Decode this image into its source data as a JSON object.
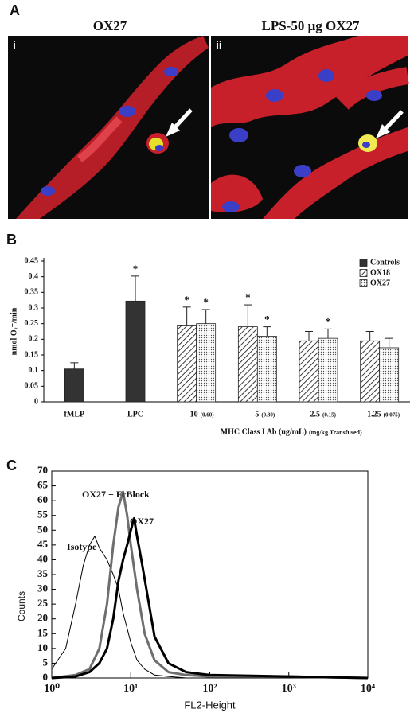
{
  "panel_labels": [
    "A",
    "B",
    "C"
  ],
  "images": [
    {
      "label": "i",
      "title": "OX27"
    },
    {
      "label": "ii",
      "title": "LPS-50 μg OX27"
    }
  ],
  "chart_data": [
    {
      "type": "bar",
      "ylabel": "nmol O₂⁻/min",
      "xlabel": "MHC Class I Ab (ug/mL)",
      "xlabel_sub": "(mg/kg Transfused)",
      "categories": [
        "fMLP",
        "LPC",
        "10",
        "5",
        "2.5",
        "1.25"
      ],
      "category_sublabels": [
        null,
        null,
        "(0.60)",
        "(0.30)",
        "(0.15)",
        "(0.075)"
      ],
      "series": [
        {
          "name": "Controls",
          "color": "#333333",
          "pattern": "solid",
          "values": [
            0.105,
            0.322,
            null,
            null,
            null,
            null
          ],
          "errors": [
            0.02,
            0.08,
            null,
            null,
            null,
            null
          ],
          "significance": [
            null,
            "*",
            null,
            null,
            null,
            null
          ]
        },
        {
          "name": "OX18",
          "color": "#222222",
          "pattern": "hatch",
          "values": [
            null,
            null,
            0.243,
            0.24,
            0.195,
            0.195
          ],
          "errors": [
            null,
            null,
            0.06,
            0.07,
            0.03,
            0.03
          ],
          "significance": [
            null,
            null,
            "*",
            "*",
            null,
            null
          ]
        },
        {
          "name": "OX27",
          "color": "#555555",
          "pattern": "dots",
          "values": [
            null,
            null,
            0.25,
            0.21,
            0.203,
            0.173
          ],
          "errors": [
            null,
            null,
            0.045,
            0.03,
            0.03,
            0.03
          ],
          "significance": [
            null,
            null,
            "*",
            "*",
            "*",
            null
          ]
        }
      ],
      "ylim": [
        0,
        0.45
      ],
      "yticks": [
        0,
        0.05,
        0.1,
        0.15,
        0.2,
        0.25,
        0.3,
        0.35,
        0.4,
        0.45
      ],
      "legend": "top-right"
    },
    {
      "type": "line",
      "xlabel": "FL2-Height",
      "ylabel": "Counts",
      "xscale": "log",
      "xlim": [
        1,
        10000
      ],
      "xticks": [
        {
          "value": 1,
          "label": "10⁰"
        },
        {
          "value": 10,
          "label": "10¹"
        },
        {
          "value": 100,
          "label": "10²"
        },
        {
          "value": 1000,
          "label": "10³"
        },
        {
          "value": 10000,
          "label": "10⁴"
        }
      ],
      "ylim": [
        0,
        70
      ],
      "yticks": [
        0,
        5,
        10,
        15,
        20,
        25,
        30,
        35,
        40,
        45,
        50,
        55,
        60,
        65,
        70
      ],
      "series": [
        {
          "name": "Isotype",
          "color": "#000000",
          "line_width": 1,
          "x": [
            1,
            1.5,
            2,
            2.5,
            3,
            3.5,
            4,
            5,
            6,
            7,
            8,
            10,
            12,
            15,
            20,
            30,
            50,
            100,
            1000,
            10000
          ],
          "values": [
            3,
            10,
            25,
            38,
            45,
            48,
            44,
            40,
            35,
            30,
            22,
            12,
            6,
            3,
            1,
            0.5,
            0,
            0,
            0,
            0
          ]
        },
        {
          "name": "OX27 + FcBlock",
          "color": "#6e6e6e",
          "line_width": 3,
          "x": [
            1,
            2,
            3,
            4,
            5,
            6,
            7,
            8,
            9,
            10,
            12,
            15,
            20,
            30,
            50,
            100,
            1000,
            10000
          ],
          "values": [
            0,
            1,
            3,
            10,
            25,
            45,
            58,
            63,
            55,
            45,
            30,
            15,
            6,
            2,
            1,
            0.5,
            0.5,
            0
          ]
        },
        {
          "name": "OX27",
          "color": "#000000",
          "line_width": 3,
          "x": [
            1,
            2,
            3,
            4,
            5,
            6,
            7,
            8,
            9,
            10,
            11,
            12,
            14,
            17,
            20,
            30,
            50,
            100,
            1000,
            10000
          ],
          "values": [
            0,
            0.5,
            2,
            5,
            10,
            20,
            33,
            40,
            45,
            50,
            54,
            48,
            38,
            25,
            14,
            5,
            2,
            1,
            0.5,
            0
          ]
        }
      ]
    }
  ]
}
